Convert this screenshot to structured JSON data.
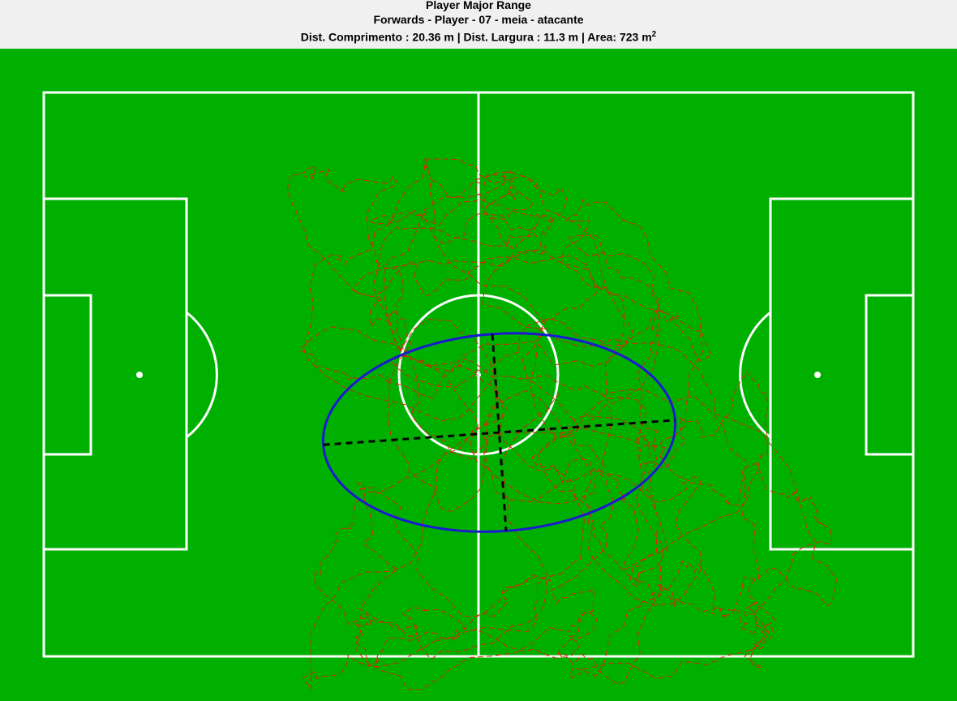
{
  "title": {
    "line1": "Player Major Range",
    "line2": "Forwards - Player - 07 - meia - atacante",
    "line3_text": "Dist. Comprimento : 20.36 m | Dist. Largura : 11.3 m | Area: 723 m",
    "line3_sup": "2"
  },
  "colors": {
    "grass": "#00b000",
    "lines": "#ffffff",
    "trajectory": "#dd2200",
    "ellipse": "#1a1ad0",
    "axes": "#000000"
  },
  "chart_data": {
    "type": "scatter",
    "title": "Player Major Range",
    "subtitle": "Forwards - Player - 07 - meia - atacante",
    "metrics": {
      "dist_comprimento_m": 20.36,
      "dist_largura_m": 11.3,
      "area_m2": 723
    },
    "pitch_m": {
      "length": 105,
      "width": 68
    },
    "ellipse": {
      "center_m": [
        55.0,
        41.0
      ],
      "semi_major_m": 21.3,
      "semi_minor_m": 11.9,
      "rotation_deg": -4
    },
    "trajectory_seed": 7,
    "trajectory_points": 1400,
    "trajectory_range_m": {
      "x": [
        10,
        110
      ],
      "y": [
        8,
        72
      ]
    },
    "grid": false,
    "legend": "none"
  }
}
